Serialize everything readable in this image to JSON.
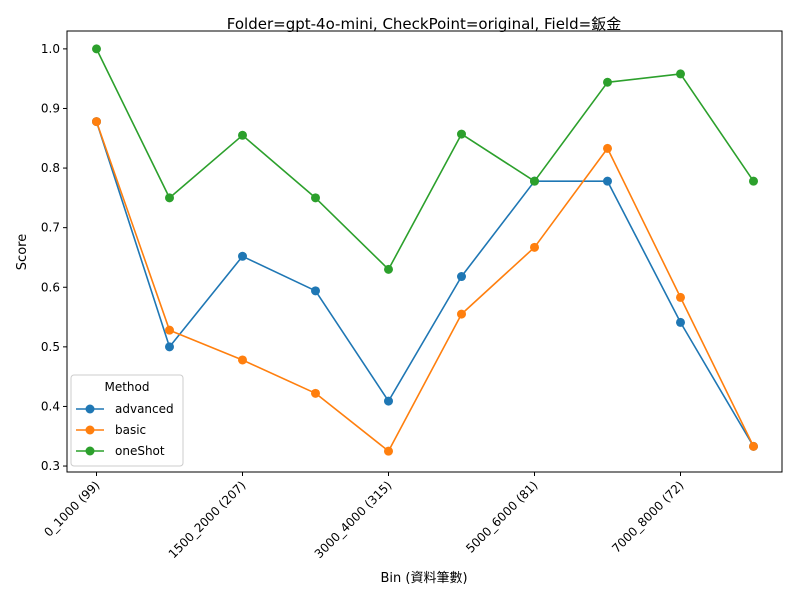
{
  "chart_data": {
    "type": "line",
    "title": "Folder=gpt-4o-mini, CheckPoint=original, Field=鈑金",
    "xlabel": "Bin (資料筆數)",
    "ylabel": "Score",
    "x_tick_labels": [
      "0_1000 (99)",
      "1500_2000 (207)",
      "3000_4000 (315)",
      "5000_6000 (81)",
      "7000_8000 (72)"
    ],
    "x_tick_indices": [
      0,
      2,
      4,
      6,
      8
    ],
    "num_points": 10,
    "ylim": [
      0.29,
      1.03
    ],
    "yticks": [
      0.3,
      0.4,
      0.5,
      0.6,
      0.7,
      0.8,
      0.9,
      1.0
    ],
    "y_tick_labels": [
      "0.3",
      "0.4",
      "0.5",
      "0.6",
      "0.7",
      "0.8",
      "0.9",
      "1.0"
    ],
    "grid": false,
    "legend": {
      "title": "Method",
      "position": "lower-left"
    },
    "series": [
      {
        "name": "advanced",
        "color": "#1f77b4",
        "values": [
          0.878,
          0.5,
          0.652,
          0.594,
          0.409,
          0.618,
          0.778,
          0.778,
          0.541,
          0.333
        ]
      },
      {
        "name": "basic",
        "color": "#ff7f0e",
        "values": [
          0.878,
          0.528,
          0.478,
          0.422,
          0.325,
          0.555,
          0.667,
          0.833,
          0.583,
          0.333
        ]
      },
      {
        "name": "oneShot",
        "color": "#2ca02c",
        "values": [
          1.0,
          0.75,
          0.855,
          0.75,
          0.63,
          0.857,
          0.778,
          0.944,
          0.958,
          0.778
        ]
      }
    ]
  }
}
